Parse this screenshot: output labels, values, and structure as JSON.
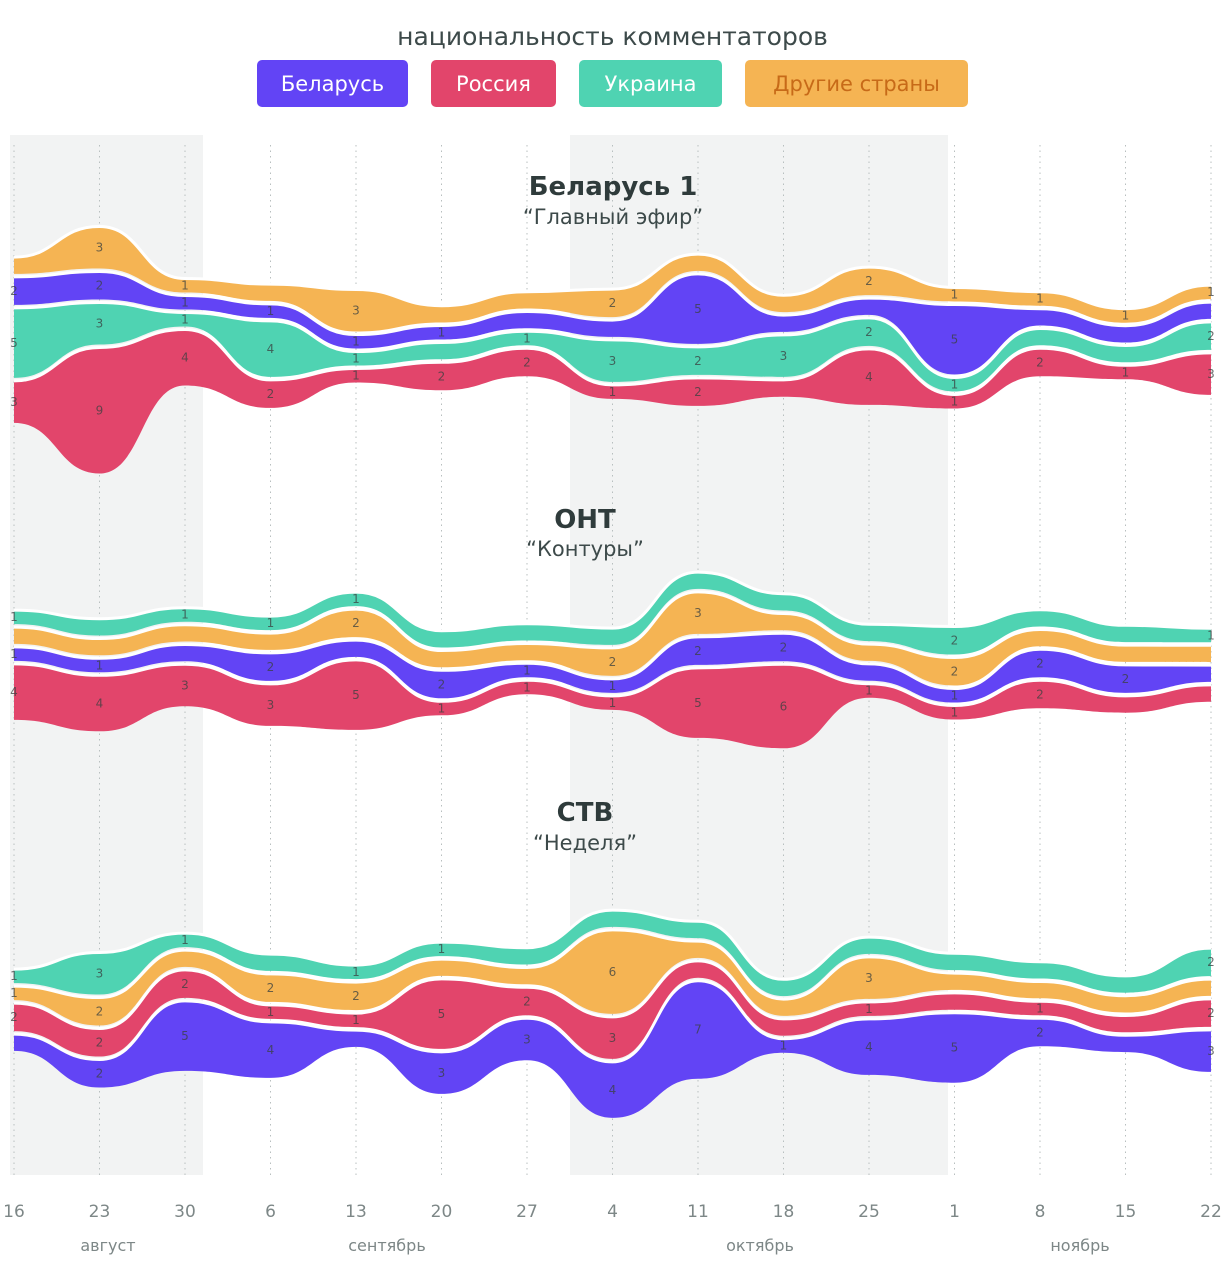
{
  "header": {
    "title": "национальность комментаторов"
  },
  "legend": [
    {
      "name": "Беларусь",
      "color": "#6244f5"
    },
    {
      "name": "Россия",
      "color": "#e2456b"
    },
    {
      "name": "Украина",
      "color": "#4fd3b2"
    },
    {
      "name": "Другие страны",
      "color": "#f5b453"
    }
  ],
  "chart_data": {
    "type": "area",
    "x": [
      "16",
      "23",
      "30",
      "6",
      "13",
      "20",
      "27",
      "4",
      "11",
      "18",
      "25",
      "1",
      "8",
      "15",
      "22"
    ],
    "months": [
      "август",
      "сентябрь",
      "октябрь",
      "ноябрь"
    ],
    "charts": [
      {
        "name": "Беларусь 1",
        "show": "“Главный эфир”",
        "series": [
          {
            "name": "Россия",
            "values": [
              3,
              9,
              4,
              2,
              1,
              2,
              2,
              1,
              2,
              null,
              4,
              1,
              2,
              1,
              3
            ]
          },
          {
            "name": "Украина",
            "values": [
              5,
              3,
              1,
              4,
              1,
              null,
              1,
              3,
              2,
              3,
              2,
              1,
              null,
              null,
              2
            ]
          },
          {
            "name": "Беларусь",
            "values": [
              2,
              2,
              1,
              1,
              1,
              1,
              null,
              null,
              5,
              null,
              null,
              5,
              null,
              null,
              null
            ]
          },
          {
            "name": "Другие страны",
            "values": [
              null,
              3,
              1,
              null,
              3,
              null,
              null,
              2,
              null,
              null,
              2,
              1,
              1,
              1,
              1
            ]
          }
        ]
      },
      {
        "name": "ОНТ",
        "show": "“Контуры”",
        "series": [
          {
            "name": "Россия",
            "values": [
              4,
              4,
              3,
              3,
              5,
              1,
              1,
              1,
              5,
              6,
              1,
              1,
              2,
              null,
              null
            ]
          },
          {
            "name": "Беларусь",
            "values": [
              1,
              1,
              null,
              2,
              null,
              2,
              1,
              1,
              2,
              2,
              null,
              1,
              2,
              2,
              null
            ]
          },
          {
            "name": "Другие страны",
            "values": [
              null,
              null,
              null,
              null,
              2,
              null,
              null,
              2,
              3,
              null,
              null,
              2,
              null,
              null,
              null
            ]
          },
          {
            "name": "Украина",
            "values": [
              1,
              null,
              1,
              1,
              1,
              null,
              null,
              null,
              null,
              null,
              null,
              2,
              null,
              null,
              1
            ]
          }
        ]
      },
      {
        "name": "СТВ",
        "show": "“Неделя”",
        "series": [
          {
            "name": "Беларусь",
            "values": [
              null,
              2,
              5,
              4,
              null,
              3,
              3,
              4,
              7,
              1,
              4,
              5,
              2,
              null,
              3
            ]
          },
          {
            "name": "Россия",
            "values": [
              2,
              2,
              2,
              1,
              1,
              5,
              2,
              3,
              null,
              null,
              1,
              null,
              1,
              null,
              2
            ]
          },
          {
            "name": "Другие страны",
            "values": [
              1,
              2,
              null,
              2,
              2,
              null,
              null,
              6,
              null,
              null,
              3,
              null,
              null,
              null,
              null
            ]
          },
          {
            "name": "Украина",
            "values": [
              1,
              3,
              1,
              null,
              1,
              1,
              null,
              null,
              null,
              null,
              null,
              null,
              null,
              null,
              2
            ]
          }
        ]
      }
    ]
  }
}
